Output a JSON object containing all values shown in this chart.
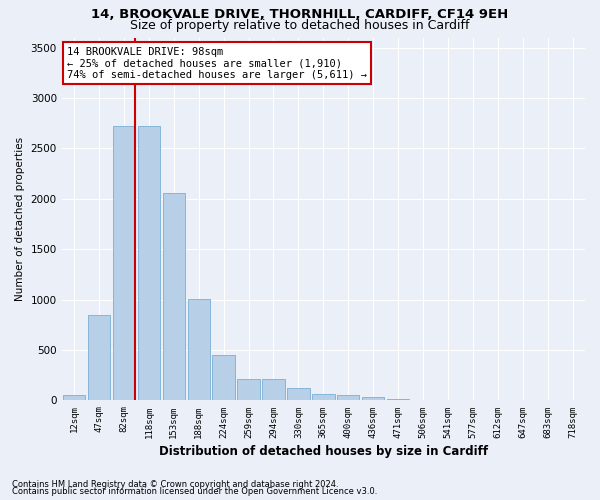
{
  "title1": "14, BROOKVALE DRIVE, THORNHILL, CARDIFF, CF14 9EH",
  "title2": "Size of property relative to detached houses in Cardiff",
  "xlabel": "Distribution of detached houses by size in Cardiff",
  "ylabel": "Number of detached properties",
  "categories": [
    "12sqm",
    "47sqm",
    "82sqm",
    "118sqm",
    "153sqm",
    "188sqm",
    "224sqm",
    "259sqm",
    "294sqm",
    "330sqm",
    "365sqm",
    "400sqm",
    "436sqm",
    "471sqm",
    "506sqm",
    "541sqm",
    "577sqm",
    "612sqm",
    "647sqm",
    "683sqm",
    "718sqm"
  ],
  "values": [
    55,
    850,
    2720,
    2720,
    2060,
    1005,
    455,
    215,
    215,
    125,
    60,
    50,
    35,
    10,
    8,
    8,
    0,
    0,
    0,
    0,
    0
  ],
  "bar_color": "#b8cfe8",
  "bar_edge_color": "#7aafd4",
  "ylim": [
    0,
    3600
  ],
  "yticks": [
    0,
    500,
    1000,
    1500,
    2000,
    2500,
    3000,
    3500
  ],
  "annotation_line1": "14 BROOKVALE DRIVE: 98sqm",
  "annotation_line2": "← 25% of detached houses are smaller (1,910)",
  "annotation_line3": "74% of semi-detached houses are larger (5,611) →",
  "footnote1": "Contains HM Land Registry data © Crown copyright and database right 2024.",
  "footnote2": "Contains public sector information licensed under the Open Government Licence v3.0.",
  "background_color": "#eaeff8",
  "grid_color": "#ffffff",
  "title1_fontsize": 9.5,
  "title2_fontsize": 9,
  "xlabel_fontsize": 8.5,
  "ylabel_fontsize": 7.5,
  "annotation_box_color": "#ffffff",
  "annotation_border_color": "#cc0000",
  "annotation_fontsize": 7.5,
  "footnote_fontsize": 6
}
